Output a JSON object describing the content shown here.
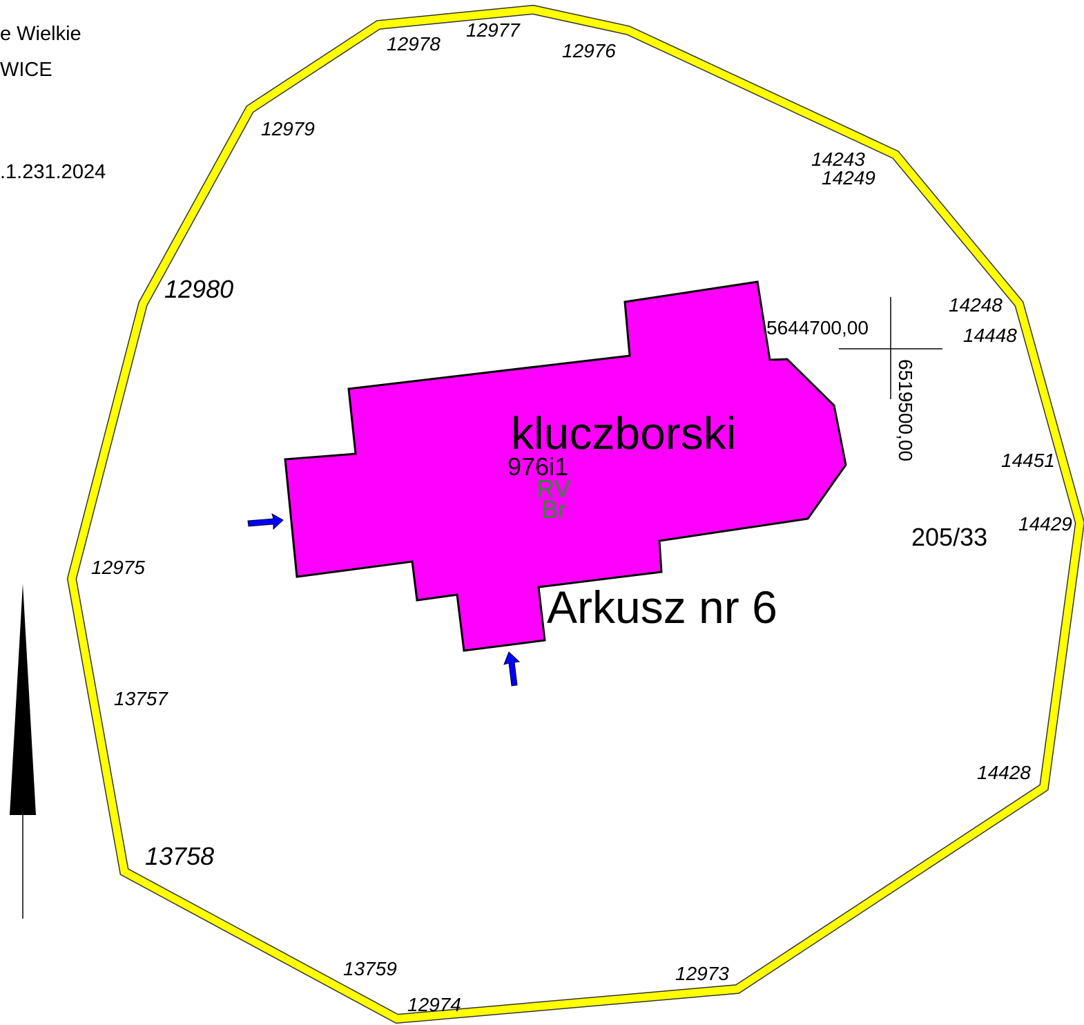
{
  "header": [
    "e Wielkie",
    "WICE",
    ".1.231.2024"
  ],
  "parcels": [
    "12978",
    "12977",
    "12976",
    "12979",
    "14243",
    "14249",
    "12980",
    "14248",
    "14448",
    "14451",
    "14429",
    "12975",
    "13757",
    "14428",
    "13758",
    "13759",
    "12973",
    "12974"
  ],
  "map": {
    "district": "kluczborski",
    "plot": "976i1",
    "land_use": [
      "RV",
      "Br"
    ],
    "neighbor_plot": "205/33",
    "sheet": "Arkusz nr 6",
    "coord_x": "5644700,00",
    "coord_y": "6519500,00"
  }
}
